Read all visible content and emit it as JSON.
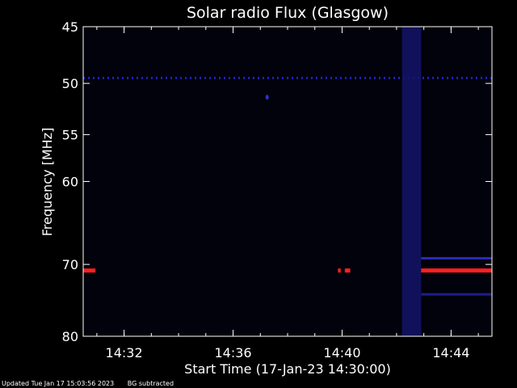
{
  "chart_data": {
    "type": "heatmap",
    "title": "Solar radio Flux (Glasgow)",
    "xlabel": "Start Time (17-Jan-23 14:30:00)",
    "ylabel": "Frequency [MHz]",
    "x_range_minutes": [
      14.5,
      29.5
    ],
    "y_range_mhz": [
      45,
      80
    ],
    "x_ticks": [
      {
        "minute": 16,
        "label": "14:32"
      },
      {
        "minute": 20,
        "label": "14:36"
      },
      {
        "minute": 24,
        "label": "14:40"
      },
      {
        "minute": 28,
        "label": "14:44"
      }
    ],
    "y_ticks": [
      {
        "mhz": 45,
        "label": "45"
      },
      {
        "mhz": 50,
        "label": "50"
      },
      {
        "mhz": 55,
        "label": "55"
      },
      {
        "mhz": 60,
        "label": "60"
      },
      {
        "mhz": 70,
        "label": "70"
      },
      {
        "mhz": 80,
        "label": "80"
      }
    ],
    "y_axis_scale": "log",
    "background_color": "#000000",
    "plot_background_color": "#02020d",
    "axis_color": "#ffffff",
    "intensity_colors": {
      "low": "#0d0d50",
      "medium": "#1a1aa8",
      "high": "#ff2020"
    },
    "features": [
      {
        "kind": "dotted_line",
        "mhz": 49.5,
        "minute_start": 14.5,
        "minute_end": 29.5,
        "color": "#2020c0"
      },
      {
        "kind": "blue_column",
        "minute_start": 26.2,
        "minute_end": 26.9,
        "mhz_start": 45,
        "mhz_end": 80,
        "color": "#14146a"
      },
      {
        "kind": "red_line",
        "mhz": 70.8,
        "minute_start": 14.5,
        "minute_end": 14.95,
        "color": "#ff2020"
      },
      {
        "kind": "red_line",
        "mhz": 70.8,
        "minute_start": 23.85,
        "minute_end": 23.95,
        "color": "#ff2020"
      },
      {
        "kind": "red_line",
        "mhz": 70.8,
        "minute_start": 24.1,
        "minute_end": 24.3,
        "color": "#ff2020"
      },
      {
        "kind": "red_line",
        "mhz": 70.8,
        "minute_start": 26.9,
        "minute_end": 29.5,
        "color": "#ff2020"
      },
      {
        "kind": "blue_line",
        "mhz": 69.2,
        "minute_start": 26.9,
        "minute_end": 29.5,
        "color": "#2a2ab8"
      },
      {
        "kind": "blue_line",
        "mhz": 74.0,
        "minute_start": 26.9,
        "minute_end": 29.5,
        "color": "#1e1e8a"
      },
      {
        "kind": "blue_spot",
        "mhz": 51.3,
        "minute": 21.25,
        "color": "#3030c8"
      }
    ]
  },
  "footer": {
    "updated": "Updated Tue Jan 17 15:03:56 2023",
    "mode": "BG subtracted"
  }
}
